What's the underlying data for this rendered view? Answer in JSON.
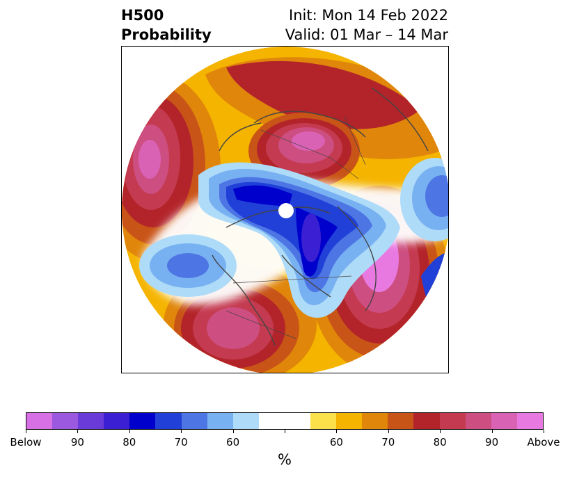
{
  "header": {
    "field": "H500",
    "product": "Probability",
    "init": "Init: Mon 14 Feb 2022",
    "valid": "Valid: 01 Mar – 14 Mar"
  },
  "colorbar": {
    "unit": "%",
    "colors": [
      "#d670e4",
      "#9b59e0",
      "#6a3bd9",
      "#3b1fd2",
      "#0000cc",
      "#2040d8",
      "#4e75e4",
      "#78b1f2",
      "#aedbf8",
      "#ffffff",
      "#ffffff",
      "#fde14a",
      "#f5b400",
      "#e0860b",
      "#c95417",
      "#b3242a",
      "#c43a50",
      "#cd4e80",
      "#da62b4",
      "#e879e0"
    ],
    "tick_labels": [
      "Below",
      "90",
      "80",
      "70",
      "60",
      "",
      "60",
      "70",
      "80",
      "90",
      "Above"
    ]
  },
  "map": {
    "projection": "north-polar-stereographic",
    "anomalies": [
      {
        "region": "North Pacific",
        "sign": "above",
        "peak_label": "90"
      },
      {
        "region": "Northern Europe / Scandinavia",
        "sign": "above",
        "peak_label": "90"
      },
      {
        "region": "Western & Central North America",
        "sign": "above",
        "peak_label": "90"
      },
      {
        "region": "Northeast Asia / East Siberia",
        "sign": "above",
        "peak_label": "Above"
      },
      {
        "region": "Arctic / Greenland / Hudson Bay",
        "sign": "below",
        "peak_label": "80"
      },
      {
        "region": "Northeast Pacific / Alaska coast",
        "sign": "below",
        "peak_label": "70"
      },
      {
        "region": "Central Asia",
        "sign": "below",
        "peak_label": "70"
      }
    ]
  }
}
